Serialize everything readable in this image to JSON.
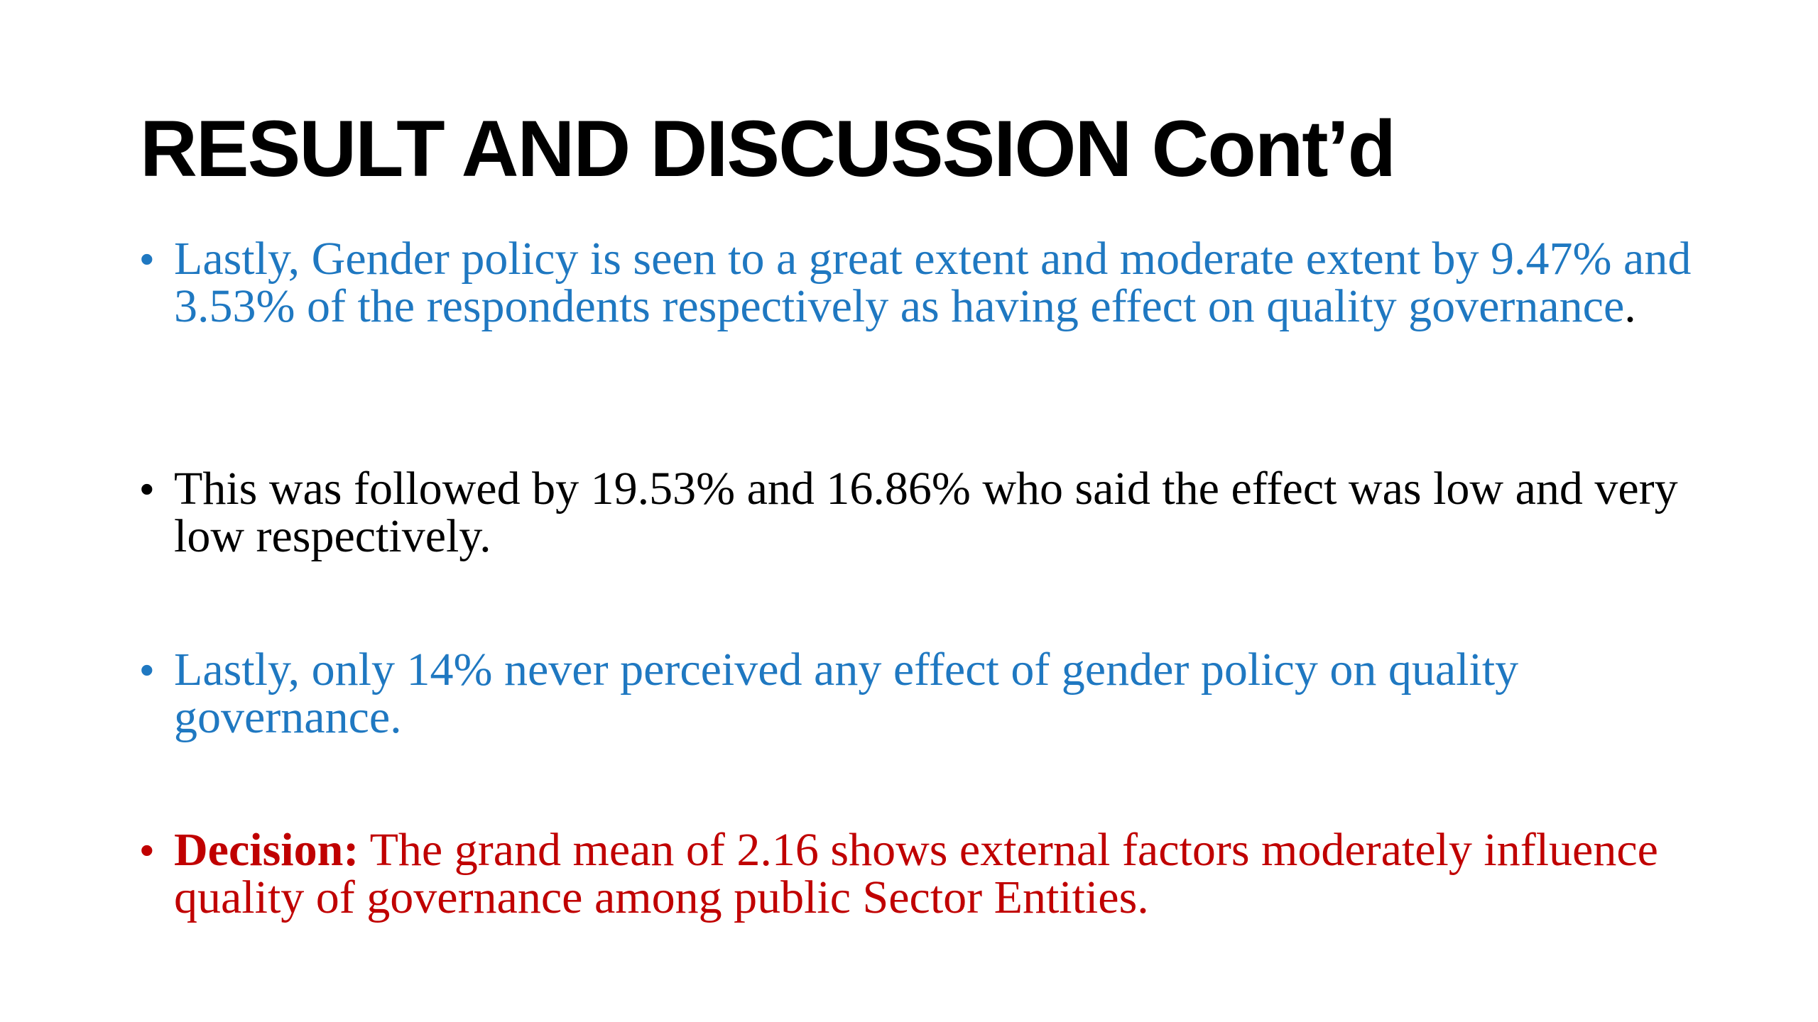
{
  "slide": {
    "title": "RESULT AND DISCUSSION Cont’d",
    "bullet_glyph": "•",
    "colors": {
      "blue": "#1f78c1",
      "black": "#000000",
      "red": "#c00000"
    },
    "bullets": [
      {
        "text": "Lastly, Gender policy is seen to a great extent and moderate extent by 9.47% and 3.53% of the respondents respectively as having effect on quality governance",
        "trailing": "."
      },
      {
        "text": "This was followed by 19.53% and 16.86% who said the effect was low and very low respectively."
      },
      {
        "text": "Lastly, only 14% never perceived any effect of gender policy on quality governance."
      },
      {
        "lead": "Decision:",
        "text": " The grand mean of 2.16 shows external factors moderately influence quality of governance among public Sector Entities."
      }
    ]
  }
}
